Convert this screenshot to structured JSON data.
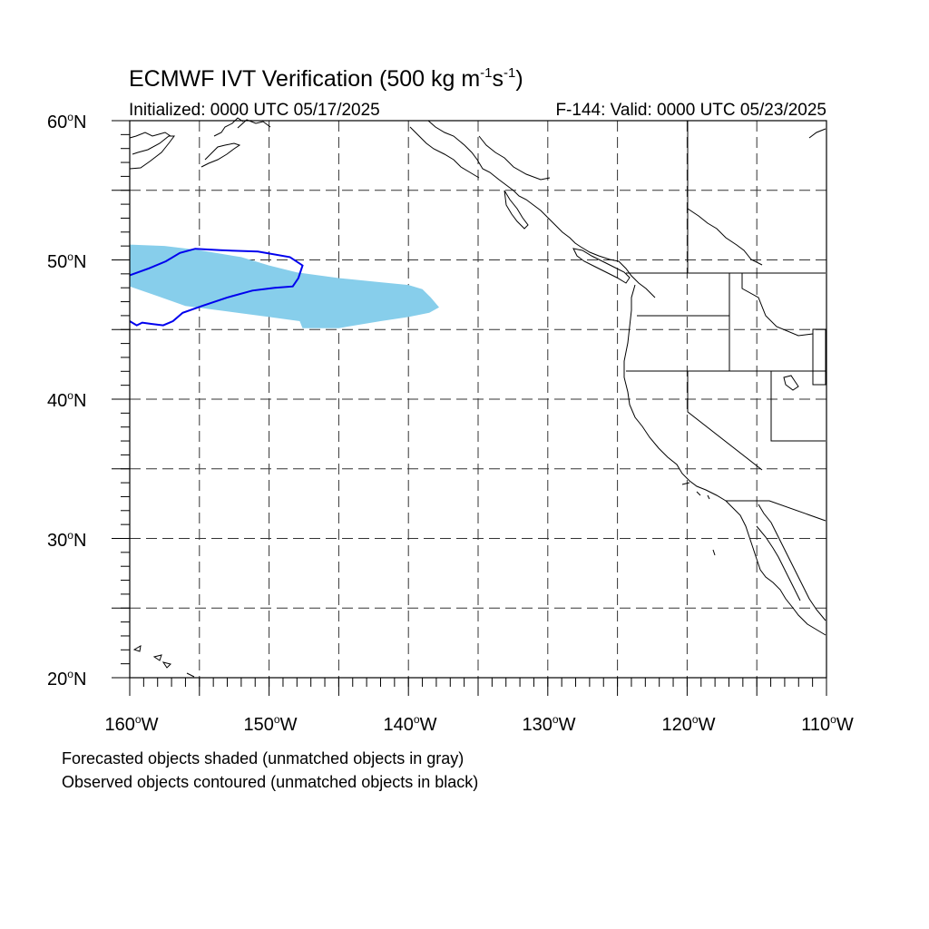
{
  "title": {
    "prefix": "ECMWF IVT Verification (500 kg m",
    "exp1": "-1",
    "mid": "s",
    "exp2": "-1",
    "suffix": ")"
  },
  "initialized": "Initialized: 0000 UTC 05/17/2025",
  "valid": "F-144: Valid: 0000 UTC 05/23/2025",
  "lat_labels": [
    {
      "value": "60",
      "unit": "o",
      "hemi": "N"
    },
    {
      "value": "50",
      "unit": "o",
      "hemi": "N"
    },
    {
      "value": "40",
      "unit": "o",
      "hemi": "N"
    },
    {
      "value": "30",
      "unit": "o",
      "hemi": "N"
    },
    {
      "value": "20",
      "unit": "o",
      "hemi": "N"
    }
  ],
  "lon_labels": [
    {
      "value": "160",
      "unit": "o",
      "hemi": "W"
    },
    {
      "value": "150",
      "unit": "o",
      "hemi": "W"
    },
    {
      "value": "140",
      "unit": "o",
      "hemi": "W"
    },
    {
      "value": "130",
      "unit": "o",
      "hemi": "W"
    },
    {
      "value": "120",
      "unit": "o",
      "hemi": "W"
    },
    {
      "value": "110",
      "unit": "o",
      "hemi": "W"
    }
  ],
  "footnotes": [
    "Forecasted objects shaded (unmatched objects in gray)",
    "Observed objects contoured (unmatched objects in black)"
  ],
  "map": {
    "lon_range": [
      -160,
      -110
    ],
    "lat_range": [
      20,
      60
    ],
    "grid_step_deg": 5,
    "grid": "dashed",
    "forecast_color": "#87ceeb",
    "observed_color": "#0000ee",
    "forecast_object": [
      [
        -160,
        51.1
      ],
      [
        -157.5,
        51
      ],
      [
        -155,
        50.7
      ],
      [
        -152,
        50.2
      ],
      [
        -150,
        49.6
      ],
      [
        -148,
        49.1
      ],
      [
        -145,
        48.7
      ],
      [
        -142,
        48.4
      ],
      [
        -140,
        48.2
      ],
      [
        -139,
        47.9
      ],
      [
        -138.4,
        47.3
      ],
      [
        -137.8,
        46.6
      ],
      [
        -138.5,
        46.2
      ],
      [
        -140,
        45.9
      ],
      [
        -142,
        45.6
      ],
      [
        -145,
        45.1
      ],
      [
        -147.6,
        45.1
      ],
      [
        -147.8,
        45.6
      ],
      [
        -150,
        45.9
      ],
      [
        -153,
        46.3
      ],
      [
        -156,
        46.7
      ],
      [
        -158,
        47.4
      ],
      [
        -160,
        48.1
      ]
    ],
    "observed_object": [
      [
        -160,
        48.9
      ],
      [
        -158.6,
        49.4
      ],
      [
        -157.4,
        49.9
      ],
      [
        -156.4,
        50.5
      ],
      [
        -155.3,
        50.8
      ],
      [
        -153.5,
        50.7
      ],
      [
        -150.8,
        50.6
      ],
      [
        -148.5,
        50.2
      ],
      [
        -147.6,
        49.6
      ],
      [
        -147.9,
        48.7
      ],
      [
        -148.3,
        48.1
      ],
      [
        -149.6,
        48
      ],
      [
        -151.2,
        47.8
      ],
      [
        -153,
        47.3
      ],
      [
        -154.8,
        46.7
      ],
      [
        -156.2,
        46.2
      ],
      [
        -156.9,
        45.6
      ],
      [
        -157.6,
        45.3
      ],
      [
        -158.4,
        45.4
      ],
      [
        -159.1,
        45.5
      ],
      [
        -159.5,
        45.3
      ],
      [
        -160,
        45.6
      ]
    ]
  }
}
